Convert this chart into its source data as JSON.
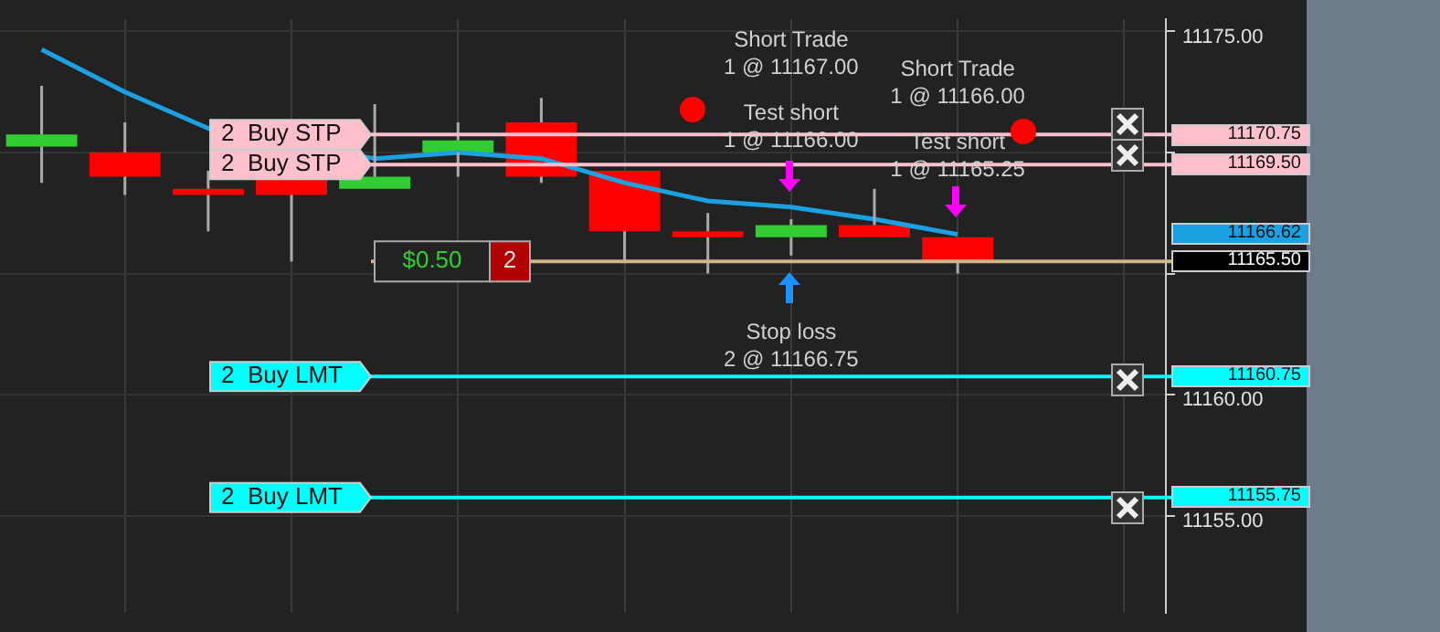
{
  "chart_data": {
    "type": "candlestick",
    "categories": [
      null,
      null,
      null,
      null,
      null,
      null,
      null,
      null,
      null,
      null,
      null,
      null,
      null,
      null
    ],
    "ohlc": [
      [
        11170.25,
        11172.75,
        11168.75,
        11170.75
      ],
      [
        11170.0,
        11171.25,
        11168.25,
        11169.0
      ],
      [
        11168.5,
        11169.25,
        11166.75,
        11168.25
      ],
      [
        11169.0,
        11169.0,
        11165.5,
        11168.25
      ],
      [
        11168.5,
        11172.0,
        11168.5,
        11169.0
      ],
      [
        11170.0,
        11171.25,
        11169.0,
        11170.5
      ],
      [
        11171.25,
        11172.25,
        11168.75,
        11169.0
      ],
      [
        11169.25,
        11169.25,
        11165.5,
        11166.75
      ],
      [
        11166.75,
        11167.5,
        11165.0,
        11166.5
      ],
      [
        11166.5,
        11167.25,
        11165.75,
        11167.0
      ],
      [
        11167.0,
        11168.5,
        11166.5,
        11166.5
      ],
      [
        11166.5,
        11166.5,
        11165.0,
        11165.5
      ],
      null,
      null
    ],
    "colors": [
      "#32cd32",
      "#ff0000",
      "#ff0000",
      "#ff0000",
      "#32cd32",
      "#32cd32",
      "#ff0000",
      "#ff0000",
      "#ff0000",
      "#32cd32",
      "#ff0000",
      "#ff0000",
      null,
      null
    ],
    "series": [
      {
        "type": "line",
        "color": "#1ba1e2",
        "values": [
          11174.25,
          11172.5,
          11171.0,
          null,
          11169.75,
          11170.0,
          11169.75,
          11168.75,
          11168.0,
          11167.75,
          11167.25,
          11166.62,
          null,
          null
        ]
      }
    ],
    "ylim": [
      11151,
      11175.5
    ],
    "yticks": [
      {
        "value": 11175,
        "label": "11175.00"
      },
      {
        "value": 11170,
        "label": null
      },
      {
        "value": 11165,
        "label": null
      },
      {
        "value": 11160,
        "label": "11160.00"
      },
      {
        "value": 11155,
        "label": "11155.00"
      }
    ],
    "tick_labels": "y",
    "grid": true,
    "legend": false,
    "ref_lines": [
      {
        "axis": "y",
        "value": 11170.75,
        "label": "11170.75",
        "color": "#ffc0cb"
      },
      {
        "axis": "y",
        "value": 11169.5,
        "label": "11169.50",
        "color": "#ffc0cb"
      },
      {
        "axis": "y",
        "value": 11165.5,
        "label": "11165.50",
        "color": "#d2b48c"
      },
      {
        "axis": "y",
        "value": 11160.75,
        "label": "11160.75",
        "color": "#00ffff"
      },
      {
        "axis": "y",
        "value": 11155.75,
        "label": "11155.75",
        "color": "#00ffff"
      }
    ],
    "annotations": [
      "Short Trade\n1 @ 11167.00",
      "Test short\n1 @ 11166.00",
      "Short Trade\n1 @ 11166.00",
      "Test short\n1 @ 11165.25",
      "Stop loss\n2 @ 11166.75",
      {
        "text": "$0.50",
        "y": 11165.5
      },
      {
        "text": "2",
        "y": 11165.5
      },
      "2  Buy STP",
      "2  Buy STP",
      "2  Buy LMT",
      "2  Buy LMT",
      "11166.62"
    ]
  }
}
